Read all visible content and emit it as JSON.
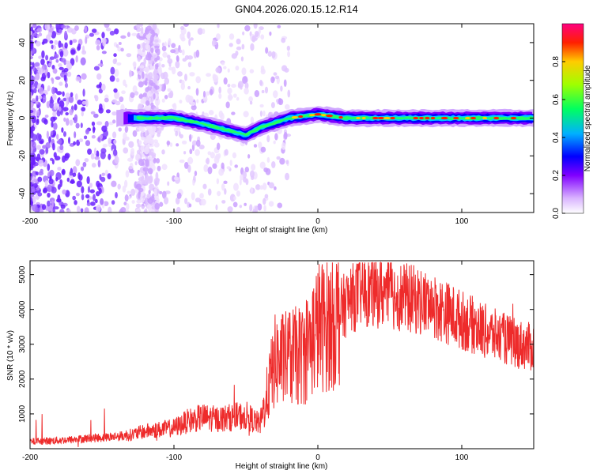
{
  "title": "GN04.2026.020.15.12.R14",
  "chart_data": [
    {
      "type": "heatmap",
      "xlabel": "Height of straight line (km)",
      "ylabel": "Frequency (Hz)",
      "xlim": [
        -200,
        150
      ],
      "ylim": [
        -50,
        50
      ],
      "xticks": [
        -200,
        -100,
        0,
        100
      ],
      "yticks": [
        -40,
        -20,
        0,
        20,
        40
      ],
      "colorbar": {
        "label": "Normalized spectral amplitude",
        "range": [
          0.0,
          1.0
        ],
        "ticks": [
          0.0,
          0.2,
          0.4,
          0.6,
          0.8
        ],
        "tick_labels": [
          "0.0",
          "0.2",
          "0.4",
          "0.6",
          "0.8"
        ]
      },
      "colors": {
        "low": "#f0e0ff",
        "mid_low": "#8040ff",
        "mid": "#0000ff",
        "mid_high": "#00ff80",
        "high": "#ff0000"
      },
      "signal_ridge": {
        "height_km": [
          -135,
          -120,
          -100,
          -80,
          -60,
          -50,
          -40,
          -20,
          0,
          20,
          50,
          100,
          150
        ],
        "frequency_hz": [
          0,
          0,
          0,
          -3,
          -7,
          -9,
          -5,
          0,
          2,
          0,
          0,
          0,
          0
        ]
      }
    },
    {
      "type": "line",
      "xlabel": "Height of straight line (km)",
      "ylabel": "SNR (10 * v/v)",
      "xlim": [
        -200,
        150
      ],
      "ylim": [
        0,
        5400
      ],
      "xticks": [
        -200,
        -100,
        0,
        100
      ],
      "yticks": [
        1000,
        2000,
        3000,
        4000,
        5000
      ],
      "color": "#ee2b2b",
      "series": [
        {
          "name": "SNR",
          "x": [
            -200,
            -190,
            -180,
            -170,
            -160,
            -150,
            -140,
            -130,
            -120,
            -110,
            -100,
            -90,
            -80,
            -70,
            -60,
            -50,
            -40,
            -30,
            -20,
            -10,
            0,
            10,
            20,
            30,
            40,
            50,
            60,
            70,
            80,
            90,
            100,
            110,
            120,
            130,
            140,
            150
          ],
          "y": [
            200,
            220,
            240,
            260,
            300,
            320,
            350,
            400,
            500,
            550,
            600,
            800,
            900,
            850,
            900,
            950,
            700,
            2500,
            2600,
            2700,
            3500,
            3600,
            4200,
            4500,
            4500,
            4450,
            4350,
            4250,
            4100,
            3900,
            3700,
            3500,
            3300,
            3150,
            3000,
            2900
          ]
        }
      ]
    }
  ]
}
